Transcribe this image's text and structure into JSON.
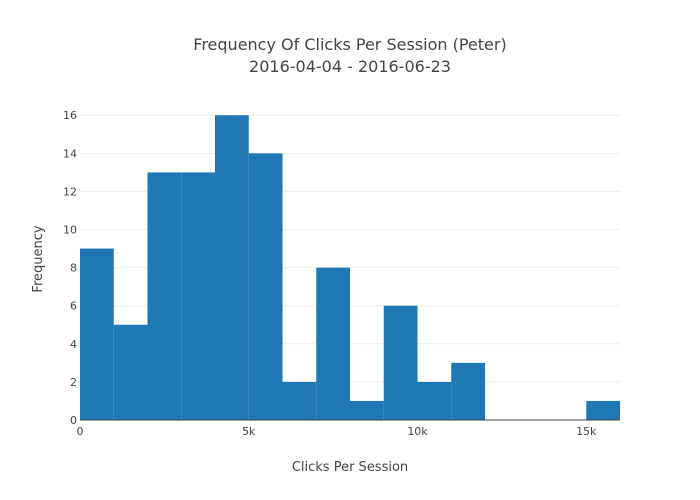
{
  "chart_data": {
    "type": "bar",
    "title": "Frequency Of Clicks Per Session (Peter)",
    "subtitle": "2016-04-04 - 2016-06-23",
    "xlabel": "Clicks Per Session",
    "ylabel": "Frequency",
    "bin_size": 1000,
    "bin_starts": [
      0,
      1000,
      2000,
      3000,
      4000,
      5000,
      6000,
      7000,
      8000,
      9000,
      10000,
      11000,
      12000,
      13000,
      14000,
      15000
    ],
    "values": [
      9,
      5,
      13,
      13,
      16,
      14,
      2,
      8,
      1,
      6,
      2,
      3,
      0,
      0,
      0,
      1
    ],
    "xlim": [
      0,
      16000
    ],
    "ylim": [
      0,
      16.8
    ],
    "x_ticks": [
      0,
      5000,
      10000,
      15000
    ],
    "x_tick_labels": [
      "0",
      "5k",
      "10k",
      "15k"
    ],
    "y_ticks": [
      0,
      2,
      4,
      6,
      8,
      10,
      12,
      14,
      16
    ],
    "y_tick_labels": [
      "0",
      "2",
      "4",
      "6",
      "8",
      "10",
      "12",
      "14",
      "16"
    ],
    "grid": true,
    "bar_color": "#1f77b4",
    "grid_color": "#eeeeee",
    "axis_line_color": "#444444"
  }
}
